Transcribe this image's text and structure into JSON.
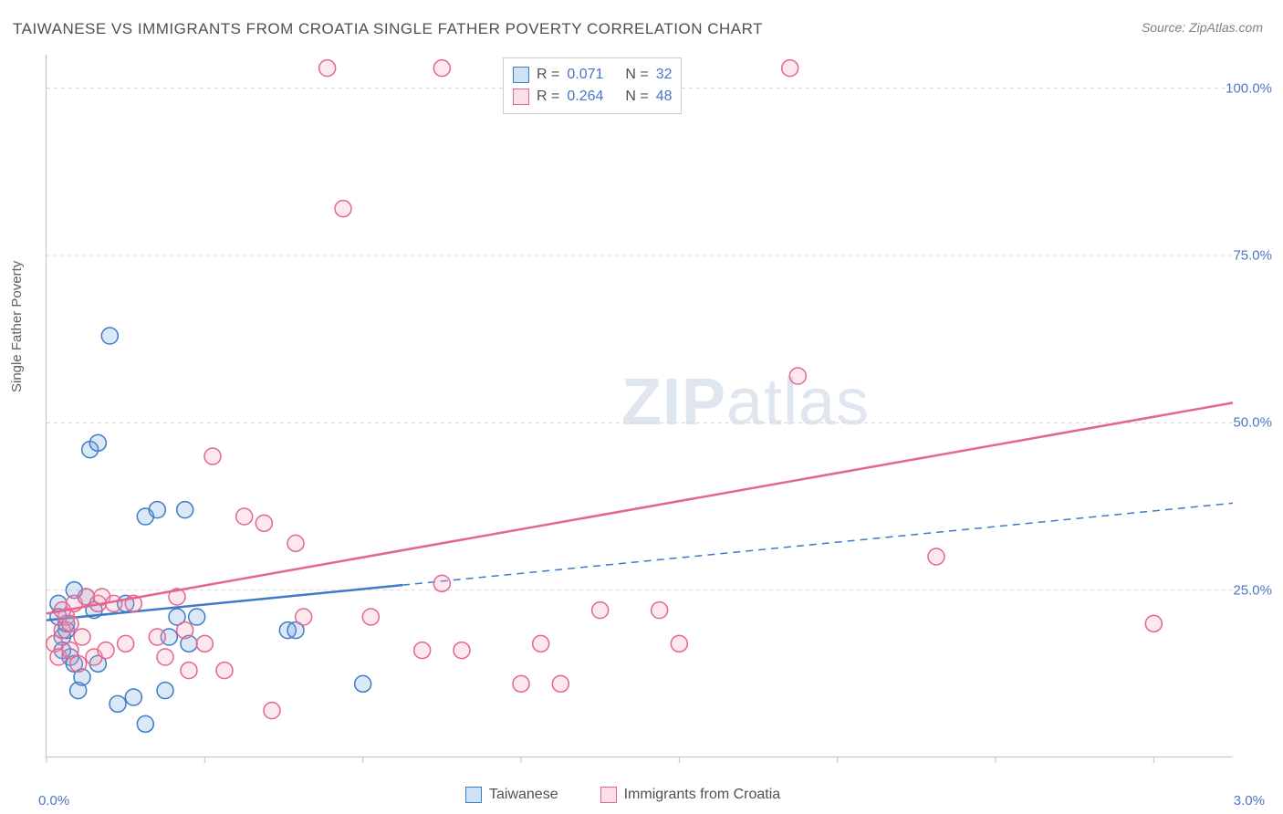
{
  "title": "TAIWANESE VS IMMIGRANTS FROM CROATIA SINGLE FATHER POVERTY CORRELATION CHART",
  "source": "Source: ZipAtlas.com",
  "ylabel": "Single Father Poverty",
  "watermark_zip": "ZIP",
  "watermark_atlas": "atlas",
  "chart": {
    "type": "scatter",
    "xlim": [
      0.0,
      3.0
    ],
    "ylim": [
      0.0,
      105.0
    ],
    "xtick_labels": {
      "min": "0.0%",
      "max": "3.0%"
    },
    "xtick_positions": [
      0.0,
      0.4,
      0.8,
      1.2,
      1.6,
      2.0,
      2.4,
      2.8
    ],
    "ytick_labels": [
      "25.0%",
      "50.0%",
      "75.0%",
      "100.0%"
    ],
    "ytick_positions": [
      25,
      50,
      75,
      100
    ],
    "grid_color": "#d8d8d8",
    "background_color": "#ffffff",
    "axis_color": "#c0c0c0",
    "tick_label_color": "#4a76c7",
    "marker_radius": 9,
    "marker_stroke_width": 1.5,
    "marker_fill_opacity": 0.25,
    "series": [
      {
        "name": "Taiwanese",
        "color": "#6ea5e0",
        "stroke": "#3d7bc9",
        "R": "0.071",
        "N": "32",
        "trend": {
          "y_at_x0": 20.5,
          "y_at_xmax": 38.0,
          "solid_until_x": 0.9,
          "dashed": true
        },
        "points": [
          [
            0.03,
            23
          ],
          [
            0.04,
            18
          ],
          [
            0.05,
            19
          ],
          [
            0.06,
            15
          ],
          [
            0.07,
            14
          ],
          [
            0.08,
            10
          ],
          [
            0.09,
            12
          ],
          [
            0.1,
            24
          ],
          [
            0.12,
            22
          ],
          [
            0.11,
            46
          ],
          [
            0.13,
            47
          ],
          [
            0.13,
            14
          ],
          [
            0.16,
            63
          ],
          [
            0.18,
            8
          ],
          [
            0.2,
            23
          ],
          [
            0.22,
            9
          ],
          [
            0.25,
            36
          ],
          [
            0.28,
            37
          ],
          [
            0.3,
            10
          ],
          [
            0.31,
            18
          ],
          [
            0.33,
            21
          ],
          [
            0.35,
            37
          ],
          [
            0.36,
            17
          ],
          [
            0.38,
            21
          ],
          [
            0.25,
            5
          ],
          [
            0.61,
            19
          ],
          [
            0.63,
            19
          ],
          [
            0.8,
            11
          ],
          [
            0.07,
            25
          ],
          [
            0.05,
            20
          ],
          [
            0.04,
            16
          ],
          [
            0.03,
            21
          ]
        ]
      },
      {
        "name": "Immigrants from Croatia",
        "color": "#f2a3b7",
        "stroke": "#e36690",
        "R": "0.264",
        "N": "48",
        "trend": {
          "y_at_x0": 21.5,
          "y_at_xmax": 53.0,
          "solid_until_x": 3.0,
          "dashed": false
        },
        "points": [
          [
            0.02,
            17
          ],
          [
            0.03,
            15
          ],
          [
            0.04,
            19
          ],
          [
            0.05,
            21
          ],
          [
            0.06,
            16
          ],
          [
            0.07,
            23
          ],
          [
            0.08,
            14
          ],
          [
            0.09,
            18
          ],
          [
            0.1,
            24
          ],
          [
            0.12,
            15
          ],
          [
            0.13,
            23
          ],
          [
            0.14,
            24
          ],
          [
            0.15,
            16
          ],
          [
            0.17,
            23
          ],
          [
            0.2,
            17
          ],
          [
            0.22,
            23
          ],
          [
            0.28,
            18
          ],
          [
            0.3,
            15
          ],
          [
            0.33,
            24
          ],
          [
            0.35,
            19
          ],
          [
            0.36,
            13
          ],
          [
            0.4,
            17
          ],
          [
            0.42,
            45
          ],
          [
            0.45,
            13
          ],
          [
            0.5,
            36
          ],
          [
            0.55,
            35
          ],
          [
            0.57,
            7
          ],
          [
            0.63,
            32
          ],
          [
            0.65,
            21
          ],
          [
            0.71,
            103
          ],
          [
            0.75,
            82
          ],
          [
            0.82,
            21
          ],
          [
            0.95,
            16
          ],
          [
            1.0,
            103
          ],
          [
            1.0,
            26
          ],
          [
            1.05,
            16
          ],
          [
            1.2,
            11
          ],
          [
            1.25,
            17
          ],
          [
            1.3,
            11
          ],
          [
            1.4,
            22
          ],
          [
            1.55,
            22
          ],
          [
            1.6,
            17
          ],
          [
            1.88,
            103
          ],
          [
            1.9,
            57
          ],
          [
            2.25,
            30
          ],
          [
            2.8,
            20
          ],
          [
            0.06,
            20
          ],
          [
            0.04,
            22
          ]
        ]
      }
    ]
  },
  "legend_top": {
    "r_label": "R =",
    "n_label": "N ="
  },
  "legend_bottom": {
    "items": [
      "Taiwanese",
      "Immigrants from Croatia"
    ]
  }
}
